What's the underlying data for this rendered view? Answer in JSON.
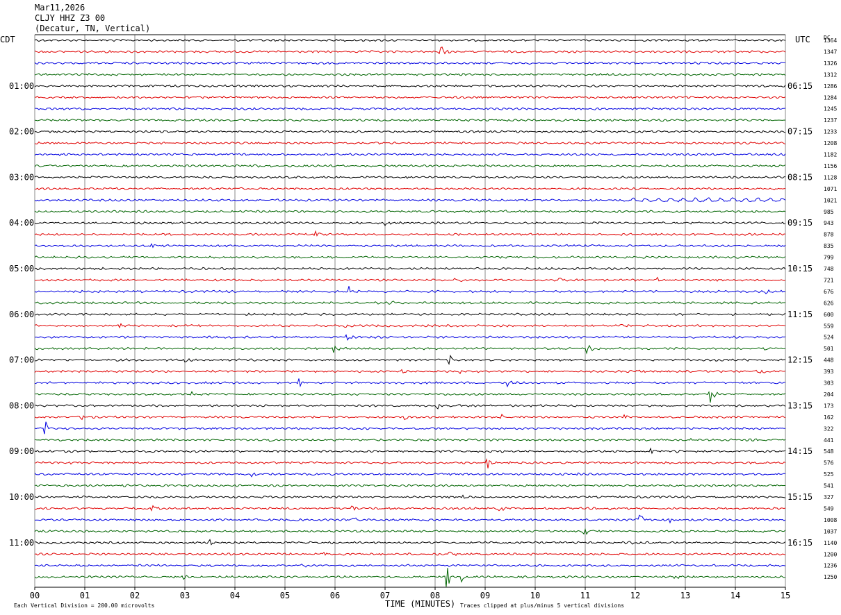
{
  "header": {
    "date": "Mar11,2026",
    "station": "CLJY HHZ Z3 00",
    "location": "(Decatur, TN, Vertical)"
  },
  "labels": {
    "left_tz": "CDT",
    "right_tz": "UTC",
    "dc": "DC"
  },
  "footer": {
    "scale_note": "Each Vertical Division =  200.00 microvolts",
    "xlabel": "TIME (MINUTES)",
    "clip_note": "Traces clipped at plus/minus 5 vertical divisions"
  },
  "chart_data": {
    "type": "line",
    "subtype": "helicorder",
    "xlabel": "TIME (MINUTES)",
    "xlim": [
      0,
      15
    ],
    "x_ticks": [
      "00",
      "01",
      "02",
      "03",
      "04",
      "05",
      "06",
      "07",
      "08",
      "09",
      "10",
      "11",
      "12",
      "13",
      "14",
      "15"
    ],
    "trace_colors": [
      "#000000",
      "#e00000",
      "#0000e0",
      "#006400"
    ],
    "row_count": 48,
    "left_time_labels": [
      {
        "row": 4,
        "label": "01:00"
      },
      {
        "row": 8,
        "label": "02:00"
      },
      {
        "row": 12,
        "label": "03:00"
      },
      {
        "row": 16,
        "label": "04:00"
      },
      {
        "row": 20,
        "label": "05:00"
      },
      {
        "row": 24,
        "label": "06:00"
      },
      {
        "row": 28,
        "label": "07:00"
      },
      {
        "row": 32,
        "label": "08:00"
      },
      {
        "row": 36,
        "label": "09:00"
      },
      {
        "row": 40,
        "label": "10:00"
      },
      {
        "row": 44,
        "label": "11:00"
      }
    ],
    "right_time_labels": [
      {
        "row": 4,
        "label": "06:15"
      },
      {
        "row": 8,
        "label": "07:15"
      },
      {
        "row": 12,
        "label": "08:15"
      },
      {
        "row": 16,
        "label": "09:15"
      },
      {
        "row": 20,
        "label": "10:15"
      },
      {
        "row": 24,
        "label": "11:15"
      },
      {
        "row": 28,
        "label": "12:15"
      },
      {
        "row": 32,
        "label": "13:15"
      },
      {
        "row": 36,
        "label": "14:15"
      },
      {
        "row": 40,
        "label": "15:15"
      },
      {
        "row": 44,
        "label": "16:15"
      }
    ],
    "dc_values": [
      "1364",
      "1347",
      "1326",
      "1312",
      "1286",
      "1284",
      "1245",
      "1237",
      "1233",
      "1208",
      "1182",
      "1156",
      "1128",
      "1071",
      "1021",
      "985",
      "943",
      "878",
      "835",
      "799",
      "748",
      "721",
      "676",
      "626",
      "600",
      "559",
      "524",
      "501",
      "448",
      "393",
      "303",
      "204",
      "173",
      "162",
      "322",
      "441",
      "548",
      "576",
      "525",
      "541",
      "327",
      "549",
      "1008",
      "1037",
      "1140",
      "1200",
      "1236",
      "1250"
    ],
    "events": [
      {
        "row": 1,
        "minute": 8.1,
        "amp": 1.4
      },
      {
        "row": 11,
        "minute": 4.4,
        "amp": 0.5
      },
      {
        "row": 15,
        "minute": 9.4,
        "amp": 0.5
      },
      {
        "row": 16,
        "minute": 7.0,
        "amp": 0.8
      },
      {
        "row": 17,
        "minute": 5.6,
        "amp": 0.8
      },
      {
        "row": 18,
        "minute": 2.3,
        "amp": 0.7
      },
      {
        "row": 21,
        "minute": 2.95,
        "amp": 0.5
      },
      {
        "row": 21,
        "minute": 5.2,
        "amp": 0.6
      },
      {
        "row": 21,
        "minute": 8.4,
        "amp": 0.5
      },
      {
        "row": 21,
        "minute": 10.5,
        "amp": 0.4
      },
      {
        "row": 21,
        "minute": 12.4,
        "amp": 0.6
      },
      {
        "row": 22,
        "minute": 6.3,
        "amp": 1.0
      },
      {
        "row": 22,
        "minute": 14.6,
        "amp": 0.5
      },
      {
        "row": 23,
        "minute": 7.1,
        "amp": 0.4
      },
      {
        "row": 25,
        "minute": 1.7,
        "amp": 0.6
      },
      {
        "row": 25,
        "minute": 6.2,
        "amp": 0.5
      },
      {
        "row": 25,
        "minute": 11.7,
        "amp": 0.6
      },
      {
        "row": 26,
        "minute": 6.25,
        "amp": 0.7
      },
      {
        "row": 27,
        "minute": 6.0,
        "amp": 0.9
      },
      {
        "row": 27,
        "minute": 11.05,
        "amp": 1.0
      },
      {
        "row": 27,
        "minute": 14.55,
        "amp": 0.7
      },
      {
        "row": 28,
        "minute": 3.0,
        "amp": 0.5
      },
      {
        "row": 28,
        "minute": 3.3,
        "amp": 0.4
      },
      {
        "row": 28,
        "minute": 8.3,
        "amp": 0.8
      },
      {
        "row": 29,
        "minute": 7.35,
        "amp": 0.7
      },
      {
        "row": 29,
        "minute": 8.5,
        "amp": 0.4
      },
      {
        "row": 29,
        "minute": 12.1,
        "amp": 0.5
      },
      {
        "row": 29,
        "minute": 14.5,
        "amp": 0.4
      },
      {
        "row": 30,
        "minute": 3.5,
        "amp": 0.6
      },
      {
        "row": 30,
        "minute": 5.3,
        "amp": 0.7
      },
      {
        "row": 30,
        "minute": 9.45,
        "amp": 0.7
      },
      {
        "row": 31,
        "minute": 3.15,
        "amp": 0.6
      },
      {
        "row": 31,
        "minute": 13.5,
        "amp": 1.8
      },
      {
        "row": 32,
        "minute": 8.05,
        "amp": 0.5
      },
      {
        "row": 32,
        "minute": 8.7,
        "amp": 0.3
      },
      {
        "row": 33,
        "minute": 0.95,
        "amp": 0.5
      },
      {
        "row": 33,
        "minute": 7.4,
        "amp": 0.5
      },
      {
        "row": 33,
        "minute": 9.3,
        "amp": 0.6
      },
      {
        "row": 33,
        "minute": 11.8,
        "amp": 0.4
      },
      {
        "row": 34,
        "minute": 0.2,
        "amp": 1.6
      },
      {
        "row": 35,
        "minute": 4.7,
        "amp": 0.4
      },
      {
        "row": 35,
        "minute": 13.1,
        "amp": 0.4
      },
      {
        "row": 36,
        "minute": 12.3,
        "amp": 0.6
      },
      {
        "row": 36,
        "minute": 12.85,
        "amp": 0.6
      },
      {
        "row": 37,
        "minute": 0.7,
        "amp": 0.4
      },
      {
        "row": 37,
        "minute": 9.05,
        "amp": 1.3
      },
      {
        "row": 38,
        "minute": 4.35,
        "amp": 0.5
      },
      {
        "row": 38,
        "minute": 10.8,
        "amp": 0.3
      },
      {
        "row": 39,
        "minute": 1.8,
        "amp": 0.3
      },
      {
        "row": 40,
        "minute": 8.55,
        "amp": 0.5
      },
      {
        "row": 40,
        "minute": 10.7,
        "amp": 0.3
      },
      {
        "row": 41,
        "minute": 2.35,
        "amp": 0.5
      },
      {
        "row": 41,
        "minute": 6.35,
        "amp": 0.5
      },
      {
        "row": 41,
        "minute": 9.3,
        "amp": 0.4
      },
      {
        "row": 41,
        "minute": 11.5,
        "amp": 0.4
      },
      {
        "row": 42,
        "minute": 6.3,
        "amp": 0.8
      },
      {
        "row": 42,
        "minute": 12.1,
        "amp": 1.1
      },
      {
        "row": 42,
        "minute": 12.7,
        "amp": 0.6
      },
      {
        "row": 43,
        "minute": 11.0,
        "amp": 0.7
      },
      {
        "row": 44,
        "minute": 3.5,
        "amp": 0.7
      },
      {
        "row": 44,
        "minute": 11.9,
        "amp": 0.3
      },
      {
        "row": 45,
        "minute": 5.8,
        "amp": 0.5
      },
      {
        "row": 45,
        "minute": 8.3,
        "amp": 0.7
      },
      {
        "row": 46,
        "minute": 5.35,
        "amp": 0.3
      },
      {
        "row": 47,
        "minute": 3.0,
        "amp": 0.5
      },
      {
        "row": 47,
        "minute": 8.25,
        "amp": 2.0
      },
      {
        "row": 47,
        "minute": 8.55,
        "amp": 1.0
      },
      {
        "row": 47,
        "minute": 12.8,
        "amp": 0.5
      }
    ]
  }
}
